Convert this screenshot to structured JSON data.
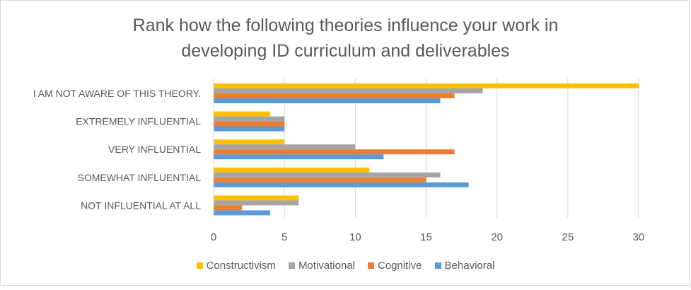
{
  "chart_data": {
    "type": "bar",
    "orientation": "horizontal",
    "title": "Rank how the following theories influence your work in\ndeveloping ID curriculum and deliverables",
    "categories": [
      "I AM NOT AWARE OF THIS THEORY.",
      "EXTREMELY INFLUENTIAL",
      "VERY INFLUENTIAL",
      "SOMEWHAT INFLUENTIAL",
      "NOT INFLUENTIAL AT ALL"
    ],
    "series": [
      {
        "name": "Constructivism",
        "color": "#ffc000",
        "values": [
          30,
          4,
          5,
          11,
          6
        ]
      },
      {
        "name": "Motivational",
        "color": "#a5a5a5",
        "values": [
          19,
          5,
          10,
          16,
          6
        ]
      },
      {
        "name": "Cognitive",
        "color": "#ed7d31",
        "values": [
          17,
          5,
          17,
          15,
          2
        ]
      },
      {
        "name": "Behavioral",
        "color": "#5b9bd5",
        "values": [
          16,
          5,
          12,
          18,
          4
        ]
      }
    ],
    "xlim": [
      0,
      30
    ],
    "xticks": [
      "0",
      "5",
      "10",
      "15",
      "20",
      "25",
      "30"
    ],
    "grid": true,
    "legend_position": "bottom"
  }
}
